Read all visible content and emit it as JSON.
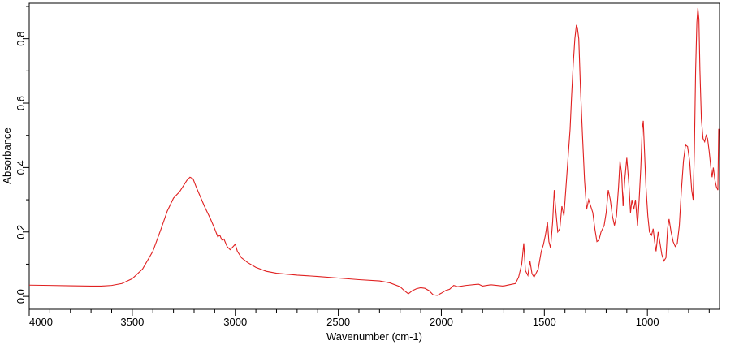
{
  "chart_data": {
    "type": "line",
    "title": "",
    "xlabel": "Wavenumber (cm-1)",
    "ylabel": "Absorbance",
    "xlim": [
      4000,
      650
    ],
    "ylim": [
      -0.04,
      0.91
    ],
    "x_reversed": true,
    "grid": false,
    "legend": "none",
    "x_ticks": [
      4000,
      3500,
      3000,
      2500,
      2000,
      1500,
      1000
    ],
    "y_ticks": [
      0.0,
      0.2,
      0.4,
      0.6,
      0.8
    ],
    "x_tick_labels": [
      "4000",
      "3500",
      "3000",
      "2500",
      "2000",
      "1500",
      "1000"
    ],
    "y_tick_labels": [
      "0.0",
      "0.2",
      "0.4",
      "0.6",
      "0.8"
    ],
    "series": [
      {
        "color": "#e02020",
        "points": [
          [
            4000,
            0.035
          ],
          [
            3900,
            0.034
          ],
          [
            3800,
            0.033
          ],
          [
            3700,
            0.032
          ],
          [
            3650,
            0.032
          ],
          [
            3600,
            0.034
          ],
          [
            3550,
            0.04
          ],
          [
            3500,
            0.055
          ],
          [
            3450,
            0.085
          ],
          [
            3400,
            0.14
          ],
          [
            3360,
            0.21
          ],
          [
            3330,
            0.265
          ],
          [
            3300,
            0.305
          ],
          [
            3270,
            0.325
          ],
          [
            3250,
            0.345
          ],
          [
            3235,
            0.36
          ],
          [
            3220,
            0.37
          ],
          [
            3205,
            0.365
          ],
          [
            3190,
            0.34
          ],
          [
            3170,
            0.31
          ],
          [
            3150,
            0.28
          ],
          [
            3120,
            0.24
          ],
          [
            3100,
            0.21
          ],
          [
            3085,
            0.185
          ],
          [
            3075,
            0.19
          ],
          [
            3065,
            0.175
          ],
          [
            3055,
            0.178
          ],
          [
            3040,
            0.155
          ],
          [
            3025,
            0.145
          ],
          [
            3010,
            0.155
          ],
          [
            3000,
            0.162
          ],
          [
            2990,
            0.14
          ],
          [
            2970,
            0.12
          ],
          [
            2940,
            0.105
          ],
          [
            2900,
            0.09
          ],
          [
            2850,
            0.078
          ],
          [
            2800,
            0.072
          ],
          [
            2700,
            0.066
          ],
          [
            2600,
            0.062
          ],
          [
            2500,
            0.057
          ],
          [
            2400,
            0.052
          ],
          [
            2300,
            0.048
          ],
          [
            2250,
            0.042
          ],
          [
            2200,
            0.03
          ],
          [
            2180,
            0.018
          ],
          [
            2160,
            0.008
          ],
          [
            2140,
            0.018
          ],
          [
            2120,
            0.024
          ],
          [
            2100,
            0.027
          ],
          [
            2080,
            0.025
          ],
          [
            2060,
            0.018
          ],
          [
            2040,
            0.005
          ],
          [
            2020,
            0.003
          ],
          [
            2000,
            0.01
          ],
          [
            1980,
            0.018
          ],
          [
            1960,
            0.022
          ],
          [
            1940,
            0.034
          ],
          [
            1920,
            0.03
          ],
          [
            1880,
            0.034
          ],
          [
            1820,
            0.038
          ],
          [
            1800,
            0.032
          ],
          [
            1760,
            0.036
          ],
          [
            1700,
            0.032
          ],
          [
            1670,
            0.036
          ],
          [
            1640,
            0.04
          ],
          [
            1625,
            0.06
          ],
          [
            1610,
            0.1
          ],
          [
            1600,
            0.165
          ],
          [
            1592,
            0.08
          ],
          [
            1580,
            0.065
          ],
          [
            1570,
            0.11
          ],
          [
            1560,
            0.07
          ],
          [
            1550,
            0.06
          ],
          [
            1530,
            0.085
          ],
          [
            1515,
            0.14
          ],
          [
            1505,
            0.16
          ],
          [
            1495,
            0.19
          ],
          [
            1485,
            0.23
          ],
          [
            1478,
            0.17
          ],
          [
            1470,
            0.15
          ],
          [
            1460,
            0.23
          ],
          [
            1452,
            0.33
          ],
          [
            1445,
            0.27
          ],
          [
            1435,
            0.2
          ],
          [
            1425,
            0.21
          ],
          [
            1415,
            0.28
          ],
          [
            1405,
            0.25
          ],
          [
            1395,
            0.34
          ],
          [
            1385,
            0.43
          ],
          [
            1375,
            0.52
          ],
          [
            1368,
            0.62
          ],
          [
            1360,
            0.72
          ],
          [
            1352,
            0.8
          ],
          [
            1345,
            0.84
          ],
          [
            1340,
            0.835
          ],
          [
            1333,
            0.8
          ],
          [
            1325,
            0.65
          ],
          [
            1315,
            0.5
          ],
          [
            1305,
            0.36
          ],
          [
            1295,
            0.27
          ],
          [
            1285,
            0.3
          ],
          [
            1275,
            0.28
          ],
          [
            1265,
            0.26
          ],
          [
            1255,
            0.21
          ],
          [
            1245,
            0.17
          ],
          [
            1235,
            0.175
          ],
          [
            1225,
            0.2
          ],
          [
            1210,
            0.22
          ],
          [
            1200,
            0.26
          ],
          [
            1190,
            0.33
          ],
          [
            1180,
            0.3
          ],
          [
            1170,
            0.25
          ],
          [
            1160,
            0.22
          ],
          [
            1150,
            0.25
          ],
          [
            1140,
            0.34
          ],
          [
            1133,
            0.42
          ],
          [
            1125,
            0.38
          ],
          [
            1118,
            0.28
          ],
          [
            1110,
            0.36
          ],
          [
            1100,
            0.43
          ],
          [
            1090,
            0.35
          ],
          [
            1082,
            0.26
          ],
          [
            1075,
            0.3
          ],
          [
            1066,
            0.27
          ],
          [
            1058,
            0.3
          ],
          [
            1048,
            0.22
          ],
          [
            1040,
            0.3
          ],
          [
            1032,
            0.4
          ],
          [
            1025,
            0.52
          ],
          [
            1020,
            0.545
          ],
          [
            1014,
            0.45
          ],
          [
            1007,
            0.34
          ],
          [
            998,
            0.25
          ],
          [
            990,
            0.2
          ],
          [
            980,
            0.19
          ],
          [
            972,
            0.21
          ],
          [
            965,
            0.17
          ],
          [
            958,
            0.14
          ],
          [
            948,
            0.2
          ],
          [
            940,
            0.17
          ],
          [
            930,
            0.13
          ],
          [
            920,
            0.11
          ],
          [
            910,
            0.12
          ],
          [
            902,
            0.21
          ],
          [
            895,
            0.24
          ],
          [
            885,
            0.2
          ],
          [
            875,
            0.17
          ],
          [
            865,
            0.155
          ],
          [
            855,
            0.165
          ],
          [
            845,
            0.22
          ],
          [
            835,
            0.33
          ],
          [
            825,
            0.42
          ],
          [
            815,
            0.47
          ],
          [
            805,
            0.465
          ],
          [
            795,
            0.42
          ],
          [
            785,
            0.33
          ],
          [
            778,
            0.3
          ],
          [
            772,
            0.45
          ],
          [
            766,
            0.7
          ],
          [
            760,
            0.85
          ],
          [
            755,
            0.895
          ],
          [
            750,
            0.86
          ],
          [
            745,
            0.7
          ],
          [
            738,
            0.55
          ],
          [
            730,
            0.49
          ],
          [
            722,
            0.48
          ],
          [
            715,
            0.5
          ],
          [
            708,
            0.49
          ],
          [
            700,
            0.45
          ],
          [
            692,
            0.4
          ],
          [
            686,
            0.37
          ],
          [
            680,
            0.4
          ],
          [
            672,
            0.36
          ],
          [
            665,
            0.34
          ],
          [
            658,
            0.33
          ],
          [
            654,
            0.52
          ]
        ]
      }
    ]
  }
}
